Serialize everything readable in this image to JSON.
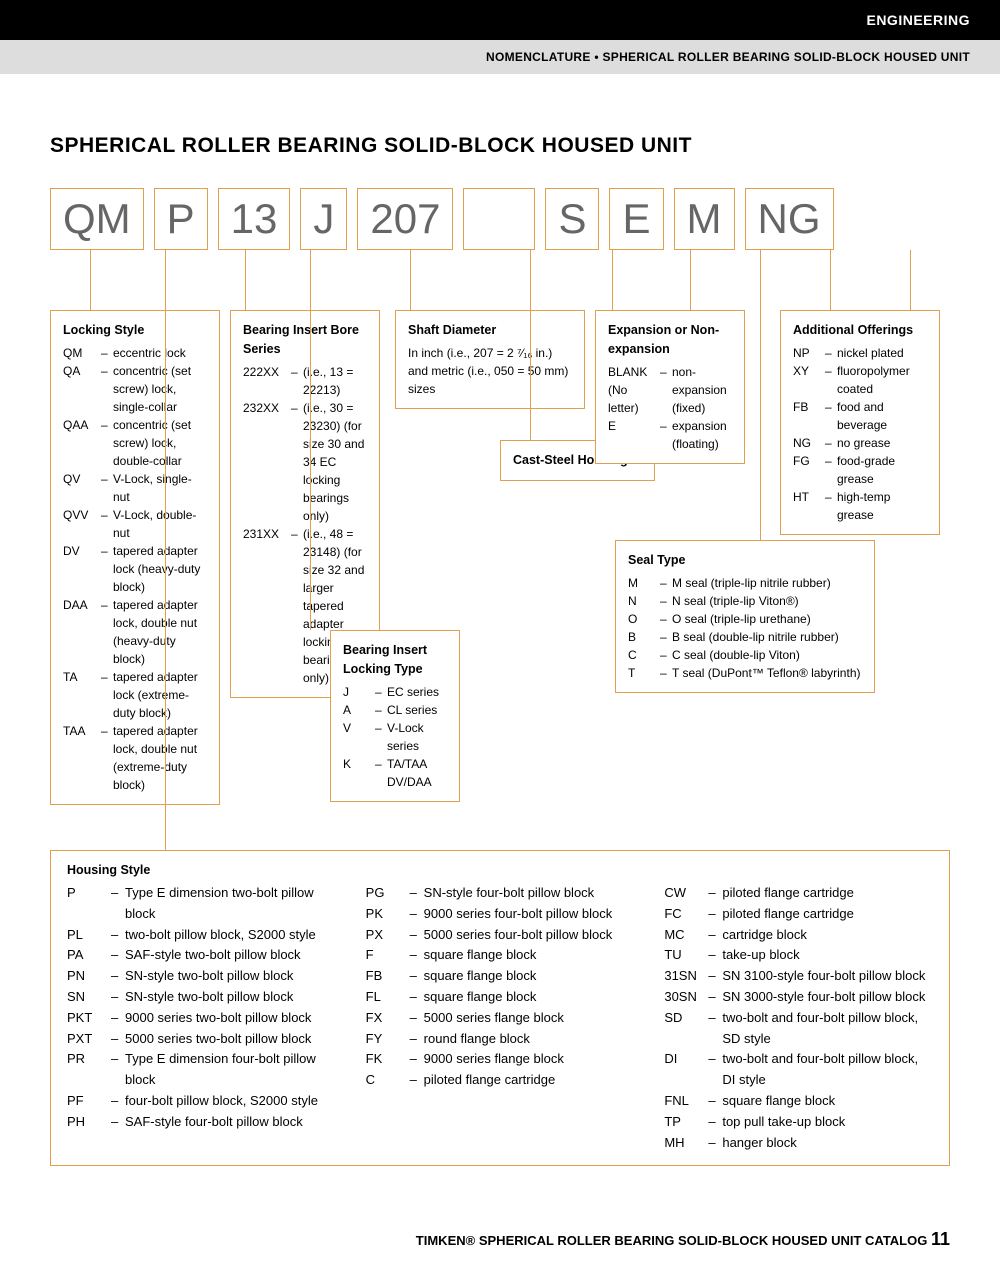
{
  "header": {
    "category": "ENGINEERING",
    "breadcrumb": "NOMENCLATURE • SPHERICAL ROLLER BEARING SOLID-BLOCK HOUSED UNIT"
  },
  "title": "SPHERICAL ROLLER BEARING SOLID-BLOCK HOUSED UNIT",
  "code_parts": [
    "QM",
    "P",
    "13",
    "J",
    "207",
    "S",
    "E",
    "M",
    "NG"
  ],
  "locking_style": {
    "title": "Locking Style",
    "items": [
      {
        "c": "QM",
        "d": "eccentric lock"
      },
      {
        "c": "QA",
        "d": "concentric (set screw) lock, single-collar"
      },
      {
        "c": "QAA",
        "d": "concentric (set screw) lock, double-collar"
      },
      {
        "c": "QV",
        "d": "V-Lock, single-nut"
      },
      {
        "c": "QVV",
        "d": "V-Lock, double-nut"
      },
      {
        "c": "DV",
        "d": "tapered adapter lock (heavy-duty block)"
      },
      {
        "c": "DAA",
        "d": "tapered adapter lock, double nut (heavy-duty block)"
      },
      {
        "c": "TA",
        "d": "tapered adapter lock (extreme-duty block)"
      },
      {
        "c": "TAA",
        "d": "tapered adapter lock, double nut (extreme-duty block)"
      }
    ]
  },
  "bearing_insert": {
    "title": "Bearing Insert Bore Series",
    "items": [
      {
        "c": "222XX",
        "d": "(i.e., 13 = 22213)"
      },
      {
        "c": "232XX",
        "d": "(i.e., 30 = 23230) (for size 30 and 34 EC locking bearings only)"
      },
      {
        "c": "231XX",
        "d": "(i.e., 48 = 23148) (for size 32 and larger tapered adapter locking bearings only)"
      }
    ]
  },
  "locking_type": {
    "title": "Bearing Insert Locking Type",
    "items": [
      {
        "c": "J",
        "d": "EC series"
      },
      {
        "c": "A",
        "d": "CL series"
      },
      {
        "c": "V",
        "d": "V-Lock series"
      },
      {
        "c": "K",
        "d": "TA/TAA DV/DAA"
      }
    ]
  },
  "shaft_diameter": {
    "title": "Shaft Diameter",
    "text": "In inch (i.e., 207 = 2 ⁷⁄₁₆ in.) and metric (i.e., 050 = 50 mm) sizes"
  },
  "cast_steel": "Cast-Steel Housing",
  "expansion": {
    "title": "Expansion or Non-expansion",
    "items": [
      {
        "c": "BLANK (No letter)",
        "d": "non-expansion (fixed)"
      },
      {
        "c": "E",
        "d": "expansion (floating)"
      }
    ]
  },
  "seal_type": {
    "title": "Seal Type",
    "items": [
      {
        "c": "M",
        "d": "M seal (triple-lip nitrile rubber)"
      },
      {
        "c": "N",
        "d": "N seal (triple-lip Viton®)"
      },
      {
        "c": "O",
        "d": "O seal (triple-lip urethane)"
      },
      {
        "c": "B",
        "d": "B seal (double-lip nitrile rubber)"
      },
      {
        "c": "C",
        "d": "C seal (double-lip Viton)"
      },
      {
        "c": "T",
        "d": "T seal (DuPont™ Teflon® labyrinth)"
      }
    ]
  },
  "additional": {
    "title": "Additional Offerings",
    "items": [
      {
        "c": "NP",
        "d": "nickel plated"
      },
      {
        "c": "XY",
        "d": "fluoropolymer coated"
      },
      {
        "c": "FB",
        "d": "food and beverage"
      },
      {
        "c": "NG",
        "d": "no grease"
      },
      {
        "c": "FG",
        "d": "food-grade grease"
      },
      {
        "c": "HT",
        "d": "high-temp grease"
      }
    ]
  },
  "housing": {
    "title": "Housing Style",
    "col1": [
      {
        "c": "P",
        "d": "Type E dimension two-bolt pillow block"
      },
      {
        "c": "PL",
        "d": "two-bolt pillow block, S2000 style"
      },
      {
        "c": "PA",
        "d": "SAF-style two-bolt pillow block"
      },
      {
        "c": "PN",
        "d": "SN-style two-bolt pillow block"
      },
      {
        "c": "SN",
        "d": "SN-style two-bolt pillow block"
      },
      {
        "c": "PKT",
        "d": "9000 series two-bolt pillow block"
      },
      {
        "c": "PXT",
        "d": "5000 series two-bolt pillow block"
      },
      {
        "c": "PR",
        "d": "Type E dimension four-bolt pillow block"
      },
      {
        "c": "PF",
        "d": "four-bolt pillow block, S2000 style"
      },
      {
        "c": "PH",
        "d": "SAF-style four-bolt pillow block"
      }
    ],
    "col2": [
      {
        "c": "PG",
        "d": "SN-style four-bolt pillow block"
      },
      {
        "c": "PK",
        "d": "9000 series four-bolt pillow block"
      },
      {
        "c": "PX",
        "d": "5000 series four-bolt pillow block"
      },
      {
        "c": "F",
        "d": "square flange block"
      },
      {
        "c": "FB",
        "d": "square flange block"
      },
      {
        "c": "FL",
        "d": "square flange block"
      },
      {
        "c": "FX",
        "d": "5000 series flange block"
      },
      {
        "c": "FY",
        "d": "round flange block"
      },
      {
        "c": "FK",
        "d": "9000 series flange block"
      },
      {
        "c": "C",
        "d": "piloted flange cartridge"
      }
    ],
    "col3": [
      {
        "c": "CW",
        "d": "piloted flange cartridge"
      },
      {
        "c": "FC",
        "d": "piloted flange cartridge"
      },
      {
        "c": "MC",
        "d": "cartridge block"
      },
      {
        "c": "TU",
        "d": "take-up block"
      },
      {
        "c": "31SN",
        "d": "SN 3100-style four-bolt pillow block"
      },
      {
        "c": "30SN",
        "d": "SN 3000-style four-bolt pillow block"
      },
      {
        "c": "SD",
        "d": "two-bolt and four-bolt pillow block, SD style"
      },
      {
        "c": "DI",
        "d": "two-bolt and four-bolt pillow block, DI style"
      },
      {
        "c": "FNL",
        "d": "square flange block"
      },
      {
        "c": "TP",
        "d": "top pull take-up block"
      },
      {
        "c": "MH",
        "d": "hanger block"
      }
    ]
  },
  "footer": {
    "brand": "TIMKEN®",
    "text": "SPHERICAL ROLLER BEARING SOLID-BLOCK HOUSED UNIT CATALOG",
    "page": "11"
  }
}
